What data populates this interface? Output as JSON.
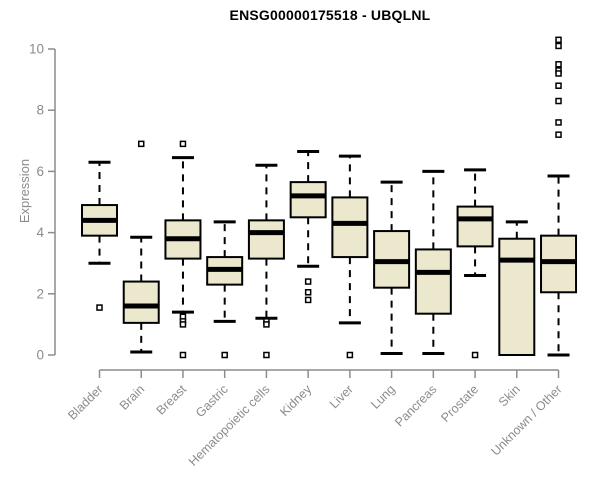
{
  "title": "ENSG00000175518 - UBQLNL",
  "y_axis": {
    "label": "Expression"
  },
  "colors": {
    "box_fill": "#ece8cd",
    "box_border": "#000000",
    "median": "#000000",
    "whisker": "#000000",
    "outlier_stroke": "#000000",
    "axis": "#8c8c8c",
    "tick_label": "#8c8c8c",
    "title": "#000000",
    "background": "#ffffff"
  },
  "chart_data": {
    "type": "boxplot",
    "title": "ENSG00000175518 - UBQLNL",
    "xlabel": "",
    "ylabel": "Expression",
    "ylim": [
      0,
      10
    ],
    "yticks": [
      0,
      2,
      4,
      6,
      8,
      10
    ],
    "grid": false,
    "legend": "none",
    "categories": [
      "Bladder",
      "Brain",
      "Breast",
      "Gastric",
      "Hematopoietic cells",
      "Kidney",
      "Liver",
      "Lung",
      "Pancreas",
      "Prostate",
      "Skin",
      "Unknown / Other"
    ],
    "series": [
      {
        "name": "Bladder",
        "low": 3.0,
        "q1": 3.9,
        "median": 4.4,
        "q3": 4.9,
        "high": 6.3,
        "outliers": [
          1.55
        ]
      },
      {
        "name": "Brain",
        "low": 0.1,
        "q1": 1.05,
        "median": 1.6,
        "q3": 2.4,
        "high": 3.85,
        "outliers": [
          6.9
        ]
      },
      {
        "name": "Breast",
        "low": 1.4,
        "q1": 3.15,
        "median": 3.8,
        "q3": 4.4,
        "high": 6.45,
        "outliers": [
          6.9,
          1.25,
          1.1,
          1.0,
          0
        ]
      },
      {
        "name": "Gastric",
        "low": 1.1,
        "q1": 2.3,
        "median": 2.8,
        "q3": 3.2,
        "high": 4.35,
        "outliers": [
          0
        ]
      },
      {
        "name": "Hematopoietic cells",
        "low": 1.2,
        "q1": 3.15,
        "median": 4.0,
        "q3": 4.4,
        "high": 6.2,
        "outliers": [
          1.1,
          1.0,
          0
        ]
      },
      {
        "name": "Kidney",
        "low": 2.9,
        "q1": 4.5,
        "median": 5.2,
        "q3": 5.65,
        "high": 6.65,
        "outliers": [
          2.4,
          2.05,
          1.8
        ]
      },
      {
        "name": "Liver",
        "low": 1.05,
        "q1": 3.2,
        "median": 4.3,
        "q3": 5.15,
        "high": 6.5,
        "outliers": [
          0
        ]
      },
      {
        "name": "Lung",
        "low": 0.05,
        "q1": 2.2,
        "median": 3.05,
        "q3": 4.05,
        "high": 5.65,
        "outliers": []
      },
      {
        "name": "Pancreas",
        "low": 0.05,
        "q1": 1.35,
        "median": 2.7,
        "q3": 3.45,
        "high": 6.0,
        "outliers": []
      },
      {
        "name": "Prostate",
        "low": 2.6,
        "q1": 3.55,
        "median": 4.45,
        "q3": 4.85,
        "high": 6.05,
        "outliers": [
          0
        ]
      },
      {
        "name": "Skin",
        "low": 0.0,
        "q1": 0.0,
        "median": 3.1,
        "q3": 3.8,
        "high": 4.35,
        "outliers": []
      },
      {
        "name": "Unknown / Other",
        "low": 0.0,
        "q1": 2.05,
        "median": 3.05,
        "q3": 3.9,
        "high": 5.85,
        "outliers": [
          10.3,
          10.1,
          9.5,
          9.3,
          9.2,
          8.8,
          8.3,
          7.6,
          7.2
        ]
      }
    ]
  }
}
